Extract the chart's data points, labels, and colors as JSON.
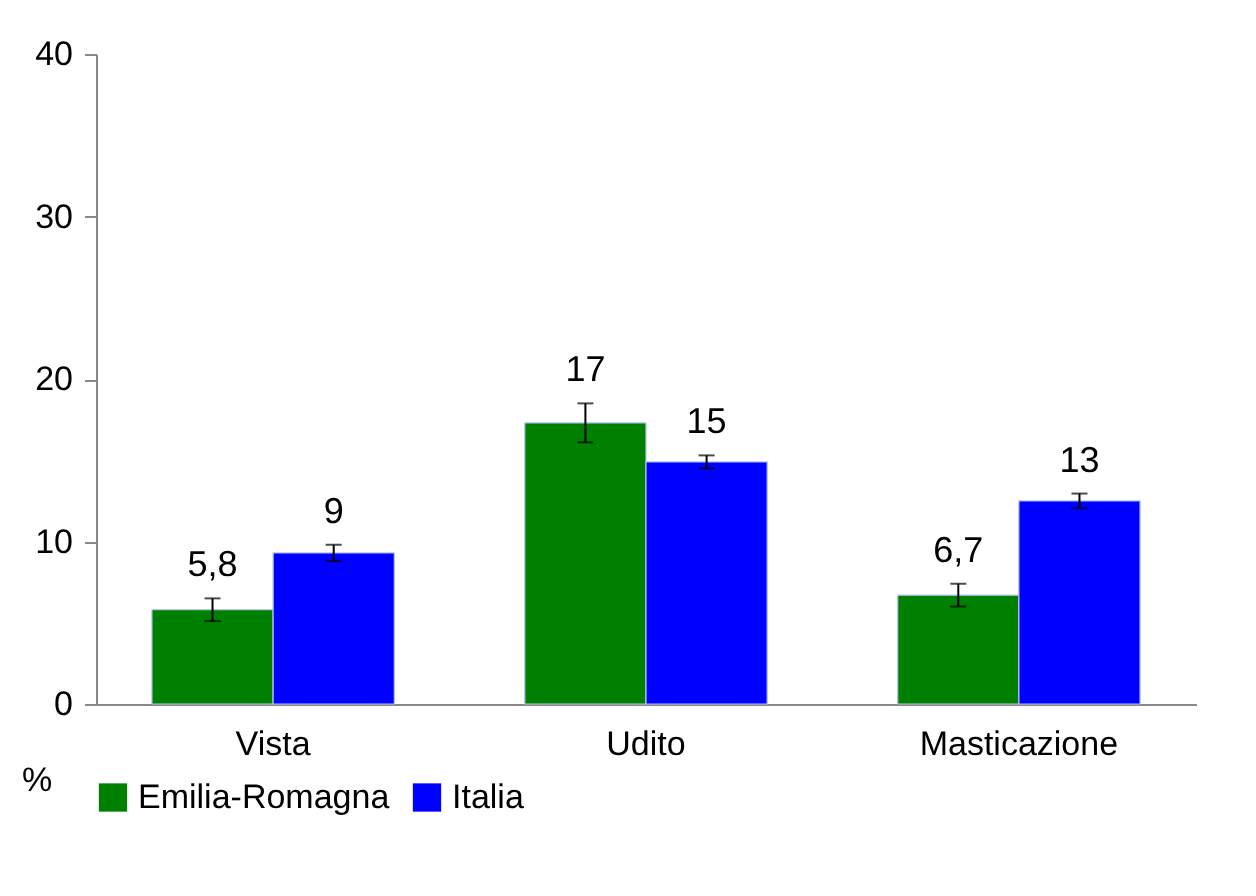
{
  "chart_data": {
    "type": "bar",
    "ylabel": "%",
    "categories": [
      "Vista",
      "Udito",
      "Masticazione"
    ],
    "series": [
      {
        "name": "Emilia-Romagna",
        "color": "#008000",
        "values": [
          5.8,
          17.3,
          6.7
        ],
        "errors": [
          0.7,
          1.2,
          0.7
        ],
        "value_labels": [
          "5,8",
          "17",
          "6,7"
        ]
      },
      {
        "name": "Italia",
        "color": "#0000ff",
        "values": [
          9.3,
          14.9,
          12.5
        ],
        "errors": [
          0.5,
          0.4,
          0.45
        ],
        "value_labels": [
          "9",
          "15",
          "13"
        ]
      }
    ],
    "ylim": [
      0,
      40
    ],
    "yticks": [
      0,
      10,
      20,
      30,
      40
    ],
    "grid": false,
    "legend": "bottom"
  }
}
